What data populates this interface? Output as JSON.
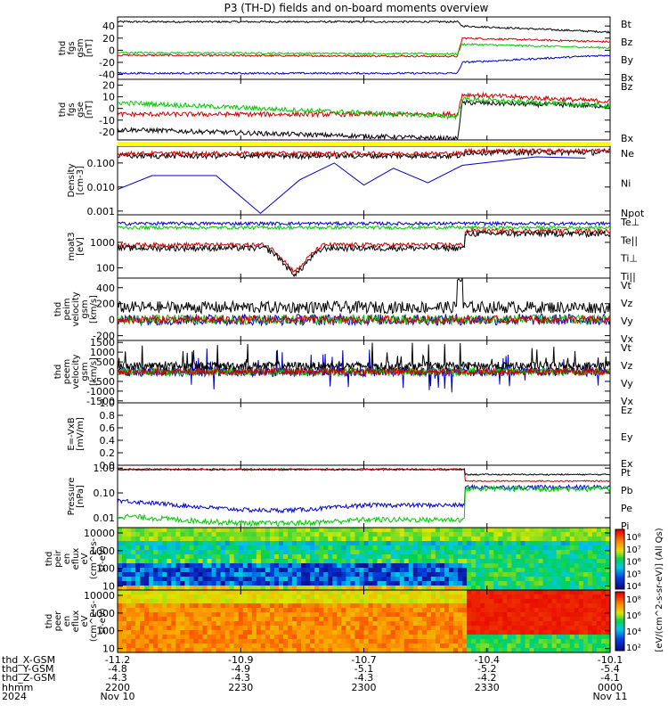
{
  "title": "P3 (TH-D) fields and on-board moments overview",
  "chart_data": [
    {
      "type": "line",
      "ylabel": [
        "thd",
        "fgs",
        "gsm",
        "[nT]"
      ],
      "yticks": [
        "40",
        "20",
        "0",
        "-20",
        "-40"
      ],
      "ylim": [
        -48,
        55
      ],
      "legend": [
        {
          "name": "Bt",
          "color": "#000000"
        },
        {
          "name": "Bz",
          "color": "#cc0000"
        },
        {
          "name": "By",
          "color": "#00cc00"
        },
        {
          "name": "Bx",
          "color": "#0000cc"
        }
      ],
      "series_levels": {
        "Bt": [
          [
            0,
            47
          ],
          [
            0.69,
            47
          ],
          [
            0.7,
            40
          ],
          [
            1,
            30
          ]
        ],
        "Bz": [
          [
            0,
            -8
          ],
          [
            0.69,
            -10
          ],
          [
            0.7,
            20
          ],
          [
            1,
            14
          ]
        ],
        "By": [
          [
            0,
            -4
          ],
          [
            0.69,
            -6
          ],
          [
            0.7,
            10
          ],
          [
            1,
            4
          ]
        ],
        "Bx": [
          [
            0,
            -38
          ],
          [
            0.69,
            -38
          ],
          [
            0.7,
            -20
          ],
          [
            1,
            -8
          ]
        ]
      }
    },
    {
      "type": "line",
      "ylabel": [
        "thd",
        "fgs",
        "gse",
        "[nT]"
      ],
      "yticks": [
        "20",
        "10",
        "0",
        "-10",
        "-20"
      ],
      "ylim": [
        -27,
        25
      ],
      "legend": [
        {
          "name": "Bz",
          "color": "#cc0000"
        },
        {
          "name": "Bx",
          "color": "#000000"
        }
      ],
      "series_levels": {
        "black": [
          [
            0,
            -18
          ],
          [
            0.69,
            -26
          ],
          [
            0.7,
            5
          ],
          [
            1,
            2
          ]
        ],
        "red": [
          [
            0,
            -5
          ],
          [
            0.69,
            -5
          ],
          [
            0.7,
            12
          ],
          [
            1,
            6
          ]
        ],
        "green": [
          [
            0,
            5
          ],
          [
            0.69,
            -7
          ],
          [
            0.7,
            8
          ],
          [
            1,
            2
          ]
        ]
      }
    },
    {
      "type": "line",
      "ylabel": [
        "Density",
        "[cm-3]"
      ],
      "yticks": [
        "0.100",
        "0.010",
        "0.001"
      ],
      "yscale": "log",
      "ylim": [
        0.0007,
        0.5
      ],
      "legend": [
        {
          "name": "Ne",
          "color": "#cc0000"
        },
        {
          "name": "Ni",
          "color": "#000000"
        },
        {
          "name": "Npot",
          "color": "#0000cc"
        }
      ],
      "npot": [
        [
          0,
          0.008
        ],
        [
          0.07,
          0.03
        ],
        [
          0.2,
          0.03
        ],
        [
          0.29,
          0.0008
        ],
        [
          0.37,
          0.02
        ],
        [
          0.44,
          0.1
        ],
        [
          0.5,
          0.012
        ],
        [
          0.56,
          0.06
        ],
        [
          0.63,
          0.015
        ],
        [
          0.7,
          0.08
        ],
        [
          0.85,
          0.18
        ],
        [
          0.95,
          0.16
        ]
      ]
    },
    {
      "type": "line",
      "ylabel": [
        "moat3",
        "[eV]"
      ],
      "yticks": [
        "1000",
        "100"
      ],
      "yscale": "log",
      "ylim": [
        40,
        12000
      ],
      "legend": [
        {
          "name": "Te⊥",
          "color": "#cc0000"
        },
        {
          "name": "Te||",
          "color": "#000000"
        },
        {
          "name": "Ti⊥",
          "color": "#0000cc"
        },
        {
          "name": "Ti||",
          "color": "#00cc00"
        }
      ]
    },
    {
      "type": "line",
      "ylabel": [
        "thd",
        "peim",
        "velocity",
        "gsm",
        "[km/s]"
      ],
      "yticks": [
        "400",
        "200",
        "0",
        "-200"
      ],
      "ylim": [
        -260,
        520
      ],
      "legend": [
        {
          "name": "Vt",
          "color": "#000000"
        },
        {
          "name": "Vz",
          "color": "#cc0000"
        },
        {
          "name": "Vy",
          "color": "#00cc00"
        },
        {
          "name": "Vx",
          "color": "#0000cc"
        }
      ]
    },
    {
      "type": "line",
      "ylabel": [
        "thd",
        "peem",
        "velocity",
        "gsm",
        "[km/s]"
      ],
      "yticks": [
        "1500",
        "1000",
        "500",
        "0",
        "-500",
        "-1000",
        "-1500"
      ],
      "ylim": [
        -1600,
        1600
      ],
      "legend": [
        {
          "name": "Vt",
          "color": "#000000"
        },
        {
          "name": "Vz",
          "color": "#cc0000"
        },
        {
          "name": "Vy",
          "color": "#00cc00"
        },
        {
          "name": "Vx",
          "color": "#0000cc"
        }
      ]
    },
    {
      "type": "line",
      "ylabel": [
        "E=-VxB",
        "[mV/m]"
      ],
      "yticks": [
        "1.0",
        "0.8",
        "0.6",
        "0.4",
        "0.2",
        "0.0"
      ],
      "ylim": [
        0,
        1
      ],
      "legend": [
        {
          "name": "Ez",
          "color": "#cc0000"
        },
        {
          "name": "Ey",
          "color": "#00cc00"
        },
        {
          "name": "Ex",
          "color": "#0000cc"
        }
      ]
    },
    {
      "type": "line",
      "ylabel": [
        "Pressure",
        "[nPa]"
      ],
      "yticks": [
        "1.00",
        "0.10",
        "0.01"
      ],
      "yscale": "log",
      "ylim": [
        0.004,
        1.3
      ],
      "legend": [
        {
          "name": "Pt",
          "color": "#000000"
        },
        {
          "name": "Pb",
          "color": "#cc0000"
        },
        {
          "name": "Pe",
          "color": "#00cc00"
        },
        {
          "name": "Pi",
          "color": "#0000cc"
        }
      ]
    },
    {
      "type": "heatmap",
      "ylabel": [
        "thd",
        "peir",
        "en",
        "eflux",
        "eV",
        "(cm^2-s-",
        "sr-eV)"
      ],
      "yticks": [
        "10000",
        "1000",
        "100",
        "10"
      ],
      "yscale": "log",
      "ylim": [
        6,
        20000
      ]
    },
    {
      "type": "heatmap",
      "ylabel": [
        "thd",
        "peer",
        "en",
        "eflux",
        "eV",
        "(cm^2-s-",
        "sr-eV)"
      ],
      "yticks": [
        "10000",
        "1000",
        "100",
        "10"
      ],
      "yscale": "log",
      "ylim": [
        6,
        20000
      ]
    }
  ],
  "colorbar": {
    "label": "[eV/(cm^2-s-sr-eV)] (All Qs)",
    "ticks_upper": [
      "10⁸",
      "10⁷",
      "10⁶",
      "10⁵",
      "10⁴"
    ],
    "ticks_lower": [
      "10⁸",
      "10⁶",
      "10⁴",
      "10²"
    ]
  },
  "xaxis": {
    "row_labels": [
      "thd_X-GSM",
      "thd_Y-GSM",
      "thd_Z-GSM",
      "hhmm",
      "2024"
    ],
    "columns": [
      {
        "values": [
          "-11.2",
          "-4.8",
          "-4.3",
          "2200",
          "Nov 10"
        ]
      },
      {
        "values": [
          "-10.9",
          "-4.9",
          "-4.3",
          "2230",
          ""
        ]
      },
      {
        "values": [
          "-10.7",
          "-5.1",
          "-4.3",
          "2300",
          ""
        ]
      },
      {
        "values": [
          "-10.4",
          "-5.2",
          "-4.2",
          "2330",
          ""
        ]
      },
      {
        "values": [
          "-10.1",
          "-5.4",
          "-4.1",
          "0000",
          "Nov 11"
        ]
      }
    ]
  }
}
